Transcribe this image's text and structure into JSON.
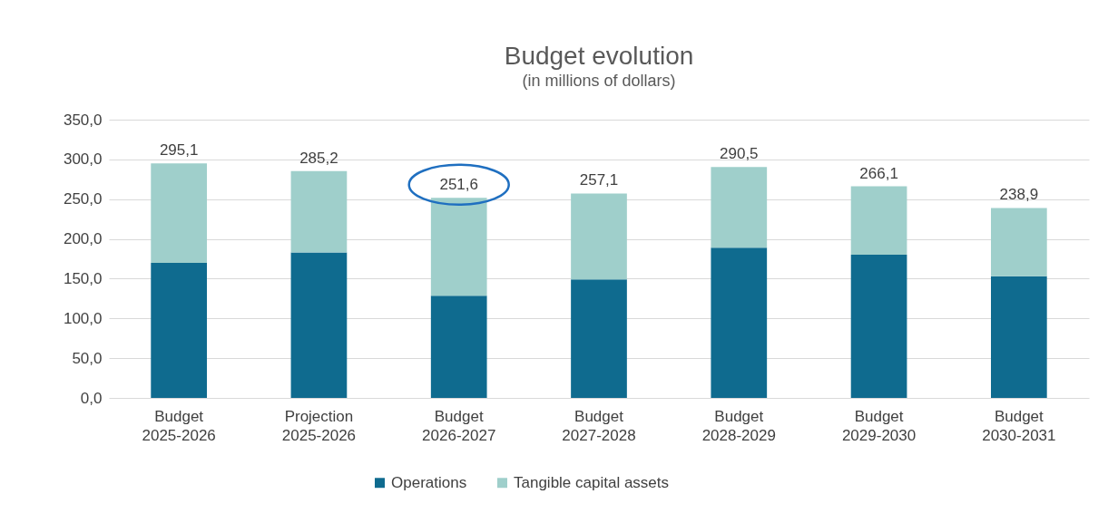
{
  "chart_data": {
    "type": "bar",
    "title": "Budget evolution",
    "subtitle": "(in millions of dollars)",
    "categories": [
      "Budget 2025-2026",
      "Projection 2025-2026",
      "Budget 2026-2027",
      "Budget 2027-2028",
      "Budget 2028-2029",
      "Budget 2029-2030",
      "Budget 2030-2031"
    ],
    "series": [
      {
        "name": "Operations",
        "color": "#0f6b8f",
        "values": [
          170,
          183,
          128.5,
          149,
          189,
          180,
          153
        ]
      },
      {
        "name": "Tangible capital assets",
        "color": "#9fcfcb",
        "values": [
          125.1,
          102.2,
          123.1,
          108.1,
          101.5,
          86.1,
          85.9
        ]
      }
    ],
    "stacked": true,
    "totals": [
      "295,1",
      "285,2",
      "251,6",
      "257,1",
      "290,5",
      "266,1",
      "238,9"
    ],
    "ylim": [
      0,
      350
    ],
    "yticks": [
      {
        "value": 0,
        "label": "0,0"
      },
      {
        "value": 50,
        "label": "50,0"
      },
      {
        "value": 100,
        "label": "100,0"
      },
      {
        "value": 150,
        "label": "150,0"
      },
      {
        "value": 200,
        "label": "200,0"
      },
      {
        "value": 250,
        "label": "250,0"
      },
      {
        "value": 300,
        "label": "300,0"
      },
      {
        "value": 350,
        "label": "350,0"
      }
    ],
    "grid": "y",
    "legend": "bottom"
  }
}
